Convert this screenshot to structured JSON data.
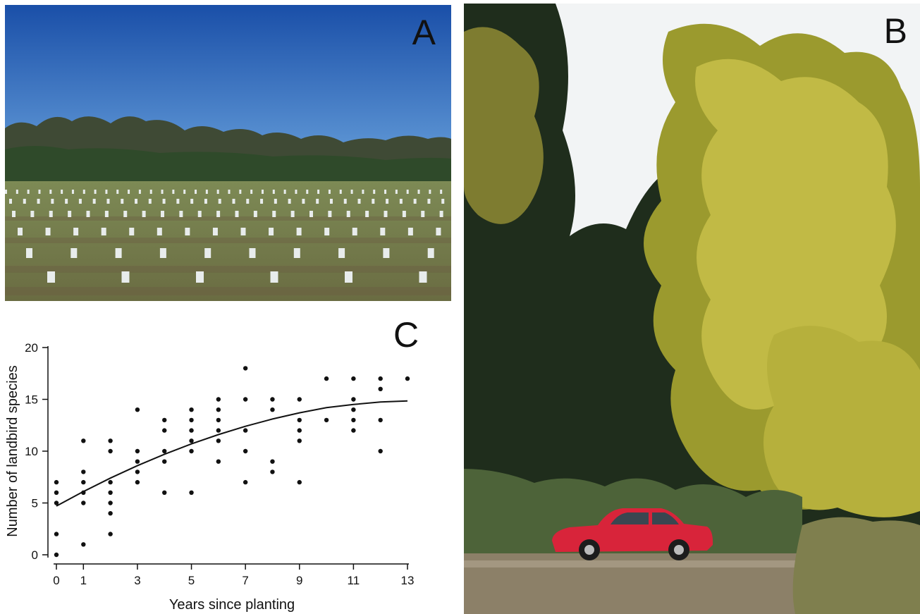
{
  "panels": {
    "a": {
      "label": "A"
    },
    "b": {
      "label": "B"
    },
    "c": {
      "label": "C"
    }
  },
  "colors": {
    "sky_top": "#1a4fa8",
    "sky_bottom": "#6aa3dd",
    "field": "#6f7a48",
    "foliage": "#b9b43a",
    "car": "#d8243a"
  },
  "chart_data": {
    "type": "scatter",
    "xlabel": "Years since planting",
    "ylabel": "Number of landbird species",
    "xlim": [
      0,
      13
    ],
    "ylim": [
      0,
      20
    ],
    "xticks": [
      0,
      1,
      3,
      5,
      7,
      9,
      11,
      13
    ],
    "yticks": [
      0,
      5,
      10,
      15,
      20
    ],
    "points": [
      [
        0,
        0
      ],
      [
        0,
        2
      ],
      [
        0,
        5
      ],
      [
        0,
        6
      ],
      [
        0,
        7
      ],
      [
        1,
        1
      ],
      [
        1,
        5
      ],
      [
        1,
        6
      ],
      [
        1,
        7
      ],
      [
        1,
        8
      ],
      [
        1,
        11
      ],
      [
        2,
        2
      ],
      [
        2,
        4
      ],
      [
        2,
        5
      ],
      [
        2,
        6
      ],
      [
        2,
        7
      ],
      [
        2,
        10
      ],
      [
        2,
        11
      ],
      [
        3,
        7
      ],
      [
        3,
        8
      ],
      [
        3,
        9
      ],
      [
        3,
        10
      ],
      [
        3,
        14
      ],
      [
        4,
        6
      ],
      [
        4,
        9
      ],
      [
        4,
        10
      ],
      [
        4,
        12
      ],
      [
        4,
        13
      ],
      [
        5,
        6
      ],
      [
        5,
        10
      ],
      [
        5,
        11
      ],
      [
        5,
        12
      ],
      [
        5,
        13
      ],
      [
        5,
        14
      ],
      [
        6,
        9
      ],
      [
        6,
        11
      ],
      [
        6,
        12
      ],
      [
        6,
        13
      ],
      [
        6,
        14
      ],
      [
        6,
        15
      ],
      [
        7,
        7
      ],
      [
        7,
        10
      ],
      [
        7,
        12
      ],
      [
        7,
        15
      ],
      [
        7,
        18
      ],
      [
        8,
        8
      ],
      [
        8,
        9
      ],
      [
        8,
        14
      ],
      [
        8,
        15
      ],
      [
        9,
        7
      ],
      [
        9,
        11
      ],
      [
        9,
        12
      ],
      [
        9,
        13
      ],
      [
        9,
        15
      ],
      [
        10,
        13
      ],
      [
        10,
        17
      ],
      [
        11,
        12
      ],
      [
        11,
        13
      ],
      [
        11,
        14
      ],
      [
        11,
        15
      ],
      [
        11,
        17
      ],
      [
        12,
        10
      ],
      [
        12,
        13
      ],
      [
        12,
        16
      ],
      [
        12,
        17
      ],
      [
        13,
        17
      ]
    ],
    "fit_curve": [
      [
        0,
        4.7
      ],
      [
        1,
        6.1
      ],
      [
        2,
        7.4
      ],
      [
        3,
        8.6
      ],
      [
        4,
        9.7
      ],
      [
        5,
        10.7
      ],
      [
        6,
        11.6
      ],
      [
        7,
        12.4
      ],
      [
        8,
        13.1
      ],
      [
        9,
        13.7
      ],
      [
        10,
        14.2
      ],
      [
        11,
        14.5
      ],
      [
        12,
        14.75
      ],
      [
        13,
        14.85
      ]
    ],
    "grid": false,
    "legend": "none"
  }
}
